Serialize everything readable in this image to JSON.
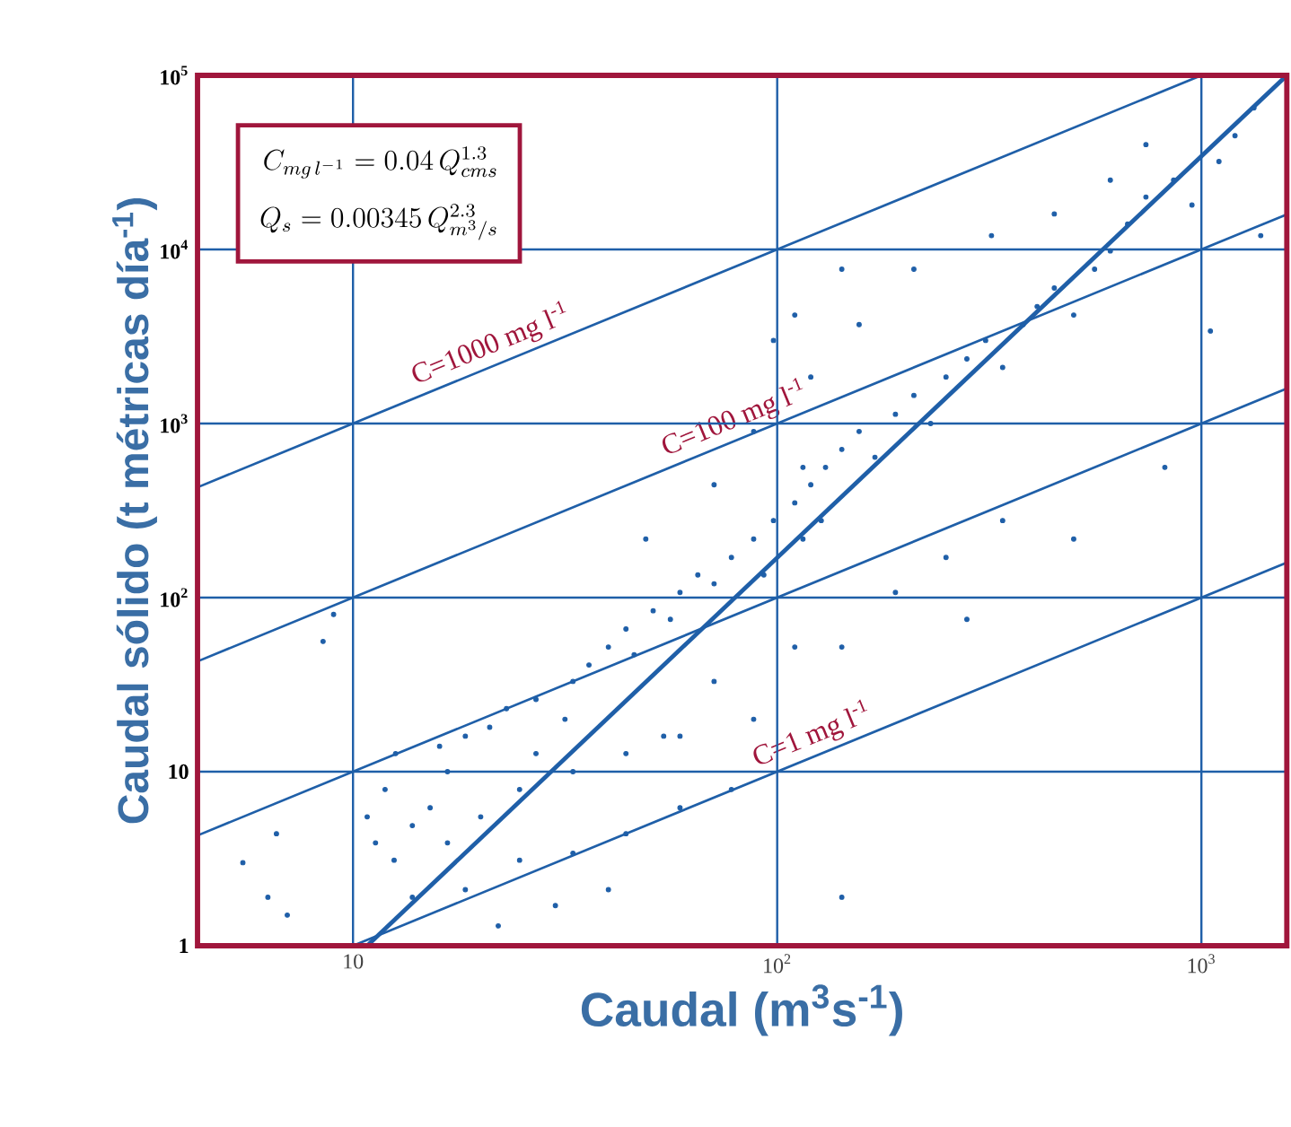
{
  "chart_data": {
    "type": "scatter",
    "xlabel": "Caudal (m$^{3}$s$^{-1}$)",
    "ylabel": "Caudal sólido (t métricas día$^{-1}$)",
    "log": "xy",
    "grid": true,
    "marker": "circle",
    "xlim": [
      4.3,
      1590
    ],
    "ylim": [
      1,
      100000
    ],
    "xticks": [
      10,
      {
        "value": 100,
        "label": "10$^{2}$"
      },
      {
        "value": 1000,
        "label": "10$^{3}$"
      }
    ],
    "yticks": [
      1,
      10,
      {
        "value": 100,
        "label": "10$^{2}$"
      },
      {
        "value": 1000,
        "label": "10$^{3}$"
      },
      {
        "value": 10000,
        "label": "10$^{4}$"
      },
      {
        "value": 100000,
        "label": "10$^{5}$"
      }
    ],
    "annotations": [
      "C_{mg\\,l^{-1}}=0.04\\,Q_{cms}^{1.3}",
      "Q_{s}=0.00345\\,Q_{m^{3}/s}^{2.3}"
    ],
    "series": [
      {
        "color": "#1f5fa8",
        "x": [
          5.5,
          6.3,
          7,
          6.6,
          8.5,
          9,
          10.8,
          11.3,
          11.9,
          12.5,
          13.8,
          15.2,
          16.7,
          12.6,
          16,
          18.4,
          21,
          23,
          27,
          31.6,
          33,
          36,
          40,
          44,
          46,
          51,
          56,
          59,
          65,
          71,
          78,
          88,
          93,
          98,
          110,
          115,
          120,
          127,
          130,
          142,
          156,
          170,
          190,
          210,
          230,
          250,
          280,
          310,
          340,
          380,
          410,
          450,
          500,
          560,
          610,
          670,
          740,
          860,
          950,
          1100,
          1200,
          1330,
          1380,
          1050,
          49,
          71,
          88,
          120,
          156,
          210,
          320,
          450,
          610,
          740,
          98,
          110,
          142,
          115,
          59,
          71,
          88,
          110,
          142,
          190,
          250,
          280,
          142,
          340,
          500,
          820,
          13.8,
          18.4,
          24.7,
          33,
          44,
          59,
          78,
          24.7,
          33,
          44,
          54,
          20,
          16.7,
          27,
          22,
          30,
          40
        ],
        "values": [
          3,
          1.9,
          1.5,
          4.4,
          56,
          80,
          5.5,
          3.9,
          7.9,
          3.1,
          4.9,
          6.2,
          3.9,
          12.7,
          14,
          16,
          18,
          23,
          26,
          20,
          33,
          41,
          52,
          66,
          47,
          84,
          75,
          107,
          135,
          120,
          170,
          217,
          135,
          277,
          350,
          217,
          445,
          277,
          560,
          710,
          900,
          640,
          1130,
          1450,
          1000,
          1850,
          2350,
          3000,
          2100,
          3700,
          4700,
          6000,
          4200,
          7700,
          9800,
          14000,
          20000,
          25000,
          18000,
          32000,
          45000,
          65000,
          12000,
          3400,
          217,
          445,
          900,
          1850,
          3700,
          7700,
          12000,
          16000,
          25000,
          40000,
          3000,
          4200,
          7700,
          560,
          16,
          33,
          20,
          52,
          52,
          107,
          170,
          75,
          1.9,
          277,
          217,
          560,
          1.9,
          2.1,
          3.1,
          3.4,
          4.4,
          6.2,
          7.9,
          7.9,
          10,
          12.7,
          16,
          5.5,
          10,
          12.7,
          1.3,
          1.7,
          2.1
        ]
      },
      {
        "type": "line",
        "marker": "none",
        "name": "C=1000 mg l$^{-1}$",
        "color": "#1f5fa8",
        "x": [
          4.3,
          1000
        ],
        "values": [
          430,
          100000
        ]
      },
      {
        "type": "line",
        "marker": "none",
        "name": "C=100 mg l$^{-1}$",
        "color": "#1f5fa8",
        "x": [
          4.3,
          1590
        ],
        "values": [
          43,
          15900
        ]
      },
      {
        "type": "line",
        "marker": "none",
        "color": "#1f5fa8",
        "x": [
          4.3,
          1590
        ],
        "values": [
          4.3,
          1590
        ]
      },
      {
        "type": "line",
        "marker": "none",
        "name": "C=1  mg l$^{-1}$",
        "color": "#1f5fa8",
        "x": [
          10,
          1590
        ],
        "values": [
          1,
          159
        ]
      },
      {
        "type": "line",
        "marker": "none",
        "color": "#1f5fa8",
        "x": [
          10.8,
          1590
        ],
        "values": [
          1,
          100000
        ]
      }
    ]
  }
}
